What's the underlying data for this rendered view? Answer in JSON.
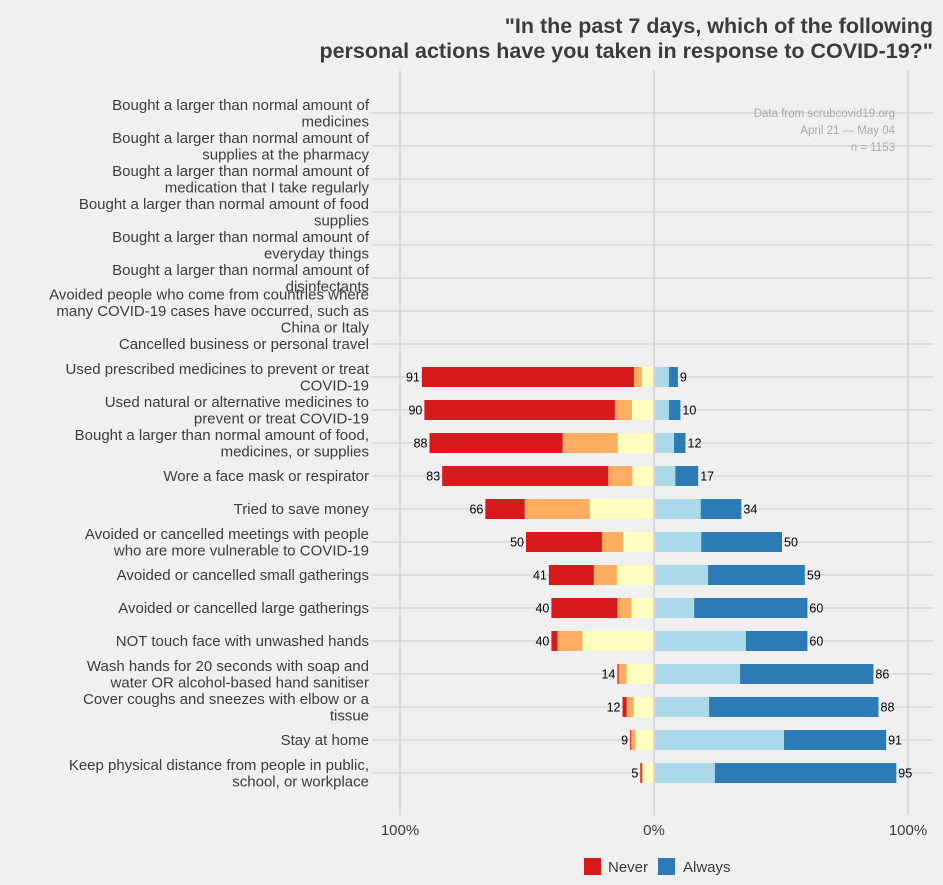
{
  "chart_data": {
    "type": "bar",
    "orientation": "horizontal-diverging-stacked",
    "title": [
      "\"In the past 7 days, which of the following",
      "personal actions have you taken in response to COVID-19?\""
    ],
    "annotation": [
      "Data from scrubcovid19.org",
      "April 21 — May 04",
      "n = 1153"
    ],
    "xlabel": "",
    "ylabel": "",
    "x_ticks": [
      "100%",
      "0%",
      "100%"
    ],
    "xlim": [
      -100,
      100
    ],
    "grid": true,
    "legend": {
      "placement": "bottom",
      "entries": [
        {
          "name": "Never",
          "color": "#d7191c"
        },
        {
          "name": "Always",
          "color": "#2c7bb6"
        }
      ]
    },
    "segment_colors": {
      "never": "#d7191c",
      "rarely": "#fdae61",
      "sometimes_low": "#ffffbf",
      "sometimes_high": "#abd9e9",
      "always": "#2c7bb6"
    },
    "categories": [
      "Bought a larger than normal amount of\nmedicines",
      "Bought a larger than normal amount of\nsupplies at the pharmacy",
      "Bought a larger than normal amount of\nmedication that I take regularly",
      "Bought a larger than normal amount of food\nsupplies",
      "Bought a larger than normal amount of\neveryday things",
      "Bought a larger than normal amount of\ndisinfectants",
      "Avoided people who come from countries where\nmany COVID-19 cases have occurred, such as\nChina or Italy",
      "Cancelled business or personal travel",
      "Used prescribed medicines to prevent or treat\nCOVID-19",
      "Used natural or alternative medicines to\nprevent or treat COVID-19",
      "Bought a larger than normal amount of food,\nmedicines, or supplies",
      "Wore a face mask or respirator",
      "Tried to save money",
      "Avoided or cancelled meetings with people\nwho are more vulnerable to COVID-19",
      "Avoided or cancelled small gatherings",
      "Avoided or cancelled large gatherings",
      "NOT touch face with unwashed hands",
      "Wash hands for 20 seconds with soap and\nwater OR alcohol-based hand sanitiser",
      "Cover coughs and sneezes with elbow or a\ntissue",
      "Stay at home",
      "Keep physical distance from people in public,\nschool, or workplace"
    ],
    "rows": [
      null,
      null,
      null,
      null,
      null,
      null,
      null,
      null,
      {
        "left_total": 91,
        "right_total": 9,
        "left": [
          83.5,
          3.1,
          4.4
        ],
        "right": [
          5.5,
          3.5
        ]
      },
      {
        "left_total": 90,
        "right_total": 10,
        "left": [
          75.0,
          6.7,
          8.3
        ],
        "right": [
          5.5,
          4.5
        ]
      },
      {
        "left_total": 88,
        "right_total": 12,
        "left": [
          52.4,
          21.7,
          13.9
        ],
        "right": [
          7.5,
          4.5
        ]
      },
      {
        "left_total": 83,
        "right_total": 17,
        "left": [
          65.4,
          9.5,
          8.1
        ],
        "right": [
          8.0,
          9.0
        ]
      },
      {
        "left_total": 66,
        "right_total": 34,
        "left": [
          15.5,
          25.6,
          24.9
        ],
        "right": [
          18.0,
          16.0
        ]
      },
      {
        "left_total": 50,
        "right_total": 50,
        "left": [
          29.9,
          8.3,
          11.8
        ],
        "right": [
          18.2,
          31.8
        ]
      },
      {
        "left_total": 41,
        "right_total": 59,
        "left": [
          17.7,
          9.1,
          14.2
        ],
        "right": [
          20.9,
          38.1
        ]
      },
      {
        "left_total": 40,
        "right_total": 60,
        "left": [
          26.0,
          5.5,
          8.5
        ],
        "right": [
          15.4,
          44.6
        ]
      },
      {
        "left_total": 40,
        "right_total": 60,
        "left": [
          2.4,
          9.8,
          27.8
        ],
        "right": [
          35.8,
          24.2
        ]
      },
      {
        "left_total": 14,
        "right_total": 86,
        "left": [
          0.5,
          3.1,
          10.4
        ],
        "right": [
          33.5,
          52.5
        ]
      },
      {
        "left_total": 12,
        "right_total": 88,
        "left": [
          1.6,
          2.8,
          7.6
        ],
        "right": [
          21.3,
          66.7
        ]
      },
      {
        "left_total": 9,
        "right_total": 91,
        "left": [
          0.4,
          1.6,
          7.0
        ],
        "right": [
          50.8,
          40.2
        ]
      },
      {
        "left_total": 5,
        "right_total": 95,
        "left": [
          0.6,
          0.4,
          4.0
        ],
        "right": [
          23.6,
          71.4
        ]
      }
    ]
  }
}
